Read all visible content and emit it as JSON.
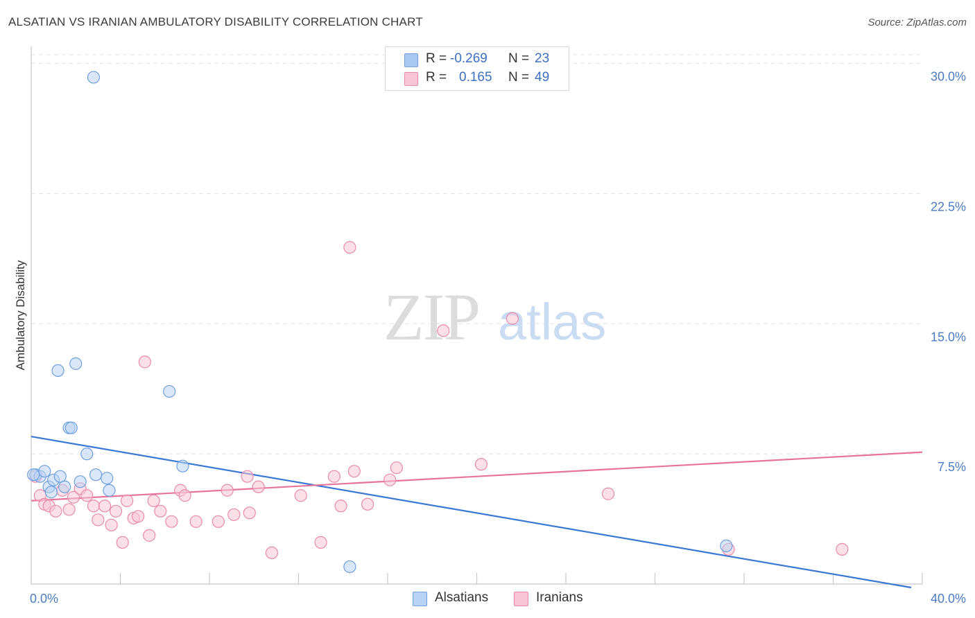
{
  "title": "ALSATIAN VS IRANIAN AMBULATORY DISABILITY CORRELATION CHART",
  "source": "Source: ZipAtlas.com",
  "watermark": {
    "zip": "ZIP",
    "atlas": "atlas"
  },
  "legend": {
    "rows": [
      {
        "r_label": "R =",
        "r_value": "-0.269",
        "n_label": "N =",
        "n_value": "23",
        "color": "#a9c8f0",
        "border": "#6f9fe0"
      },
      {
        "r_label": "R =",
        "r_value": "0.165",
        "n_label": "N =",
        "n_value": "49",
        "color": "#f8c6d6",
        "border": "#e98aaa"
      }
    ]
  },
  "bottom_legend": {
    "alsatians": "Alsatians",
    "iranians": "Iranians"
  },
  "chart_data": {
    "type": "scatter",
    "title": "ALSATIAN VS IRANIAN AMBULATORY DISABILITY CORRELATION CHART",
    "xlabel": "",
    "ylabel": "Ambulatory Disability",
    "xlim": [
      0,
      40
    ],
    "ylim": [
      0,
      30.5
    ],
    "x_tick_labels": [
      "0.0%",
      "40.0%"
    ],
    "y_ticks": [
      7.5,
      15.0,
      22.5,
      30.0
    ],
    "y_tick_labels": [
      "7.5%",
      "15.0%",
      "22.5%",
      "30.0%"
    ],
    "grid": "horizontal dashed",
    "legend_position": "top-center",
    "series": [
      {
        "name": "Alsatians",
        "color": "#6f9fe0",
        "fill": "#b9d3f4",
        "points": [
          [
            0.2,
            6.3
          ],
          [
            0.4,
            6.2
          ],
          [
            0.6,
            6.5
          ],
          [
            0.8,
            5.6
          ],
          [
            0.9,
            5.3
          ],
          [
            1.0,
            6.0
          ],
          [
            1.2,
            12.3
          ],
          [
            1.3,
            6.2
          ],
          [
            1.5,
            5.6
          ],
          [
            1.7,
            9.0
          ],
          [
            1.8,
            9.0
          ],
          [
            2.0,
            12.7
          ],
          [
            2.2,
            5.9
          ],
          [
            2.5,
            7.5
          ],
          [
            2.9,
            6.3
          ],
          [
            2.8,
            29.2
          ],
          [
            3.4,
            6.1
          ],
          [
            3.5,
            5.4
          ],
          [
            6.2,
            11.1
          ],
          [
            6.8,
            6.8
          ],
          [
            14.3,
            1.0
          ],
          [
            31.2,
            2.2
          ],
          [
            0.1,
            6.3
          ]
        ],
        "trend": {
          "x": [
            0,
            39.5
          ],
          "y": [
            8.5,
            -0.2
          ]
        }
      },
      {
        "name": "Iranians",
        "color": "#e98aaa",
        "fill": "#f8c6d6",
        "points": [
          [
            0.2,
            6.2
          ],
          [
            0.4,
            5.1
          ],
          [
            0.6,
            4.6
          ],
          [
            0.8,
            4.5
          ],
          [
            1.1,
            4.2
          ],
          [
            1.4,
            5.4
          ],
          [
            1.7,
            4.3
          ],
          [
            1.9,
            5.0
          ],
          [
            2.2,
            5.5
          ],
          [
            2.5,
            5.1
          ],
          [
            2.8,
            4.5
          ],
          [
            3.0,
            3.7
          ],
          [
            3.3,
            4.5
          ],
          [
            3.6,
            3.4
          ],
          [
            3.8,
            4.2
          ],
          [
            4.1,
            2.4
          ],
          [
            4.3,
            4.8
          ],
          [
            4.6,
            3.8
          ],
          [
            4.8,
            3.9
          ],
          [
            5.1,
            12.8
          ],
          [
            5.3,
            2.8
          ],
          [
            5.5,
            4.8
          ],
          [
            5.8,
            4.2
          ],
          [
            6.3,
            3.6
          ],
          [
            6.7,
            5.4
          ],
          [
            6.9,
            5.1
          ],
          [
            7.4,
            3.6
          ],
          [
            8.4,
            3.6
          ],
          [
            8.8,
            5.4
          ],
          [
            9.1,
            4.0
          ],
          [
            9.7,
            6.2
          ],
          [
            9.8,
            4.1
          ],
          [
            10.2,
            5.6
          ],
          [
            10.8,
            1.8
          ],
          [
            12.1,
            5.1
          ],
          [
            13.0,
            2.4
          ],
          [
            13.6,
            6.2
          ],
          [
            13.9,
            4.5
          ],
          [
            14.3,
            19.4
          ],
          [
            14.5,
            6.5
          ],
          [
            15.1,
            4.6
          ],
          [
            16.1,
            6.0
          ],
          [
            16.4,
            6.7
          ],
          [
            18.5,
            14.6
          ],
          [
            20.2,
            6.9
          ],
          [
            21.6,
            15.3
          ],
          [
            25.9,
            5.2
          ],
          [
            31.3,
            2.0
          ],
          [
            36.4,
            2.0
          ]
        ],
        "trend": {
          "x": [
            0,
            40
          ],
          "y": [
            4.8,
            7.6
          ]
        }
      }
    ]
  }
}
